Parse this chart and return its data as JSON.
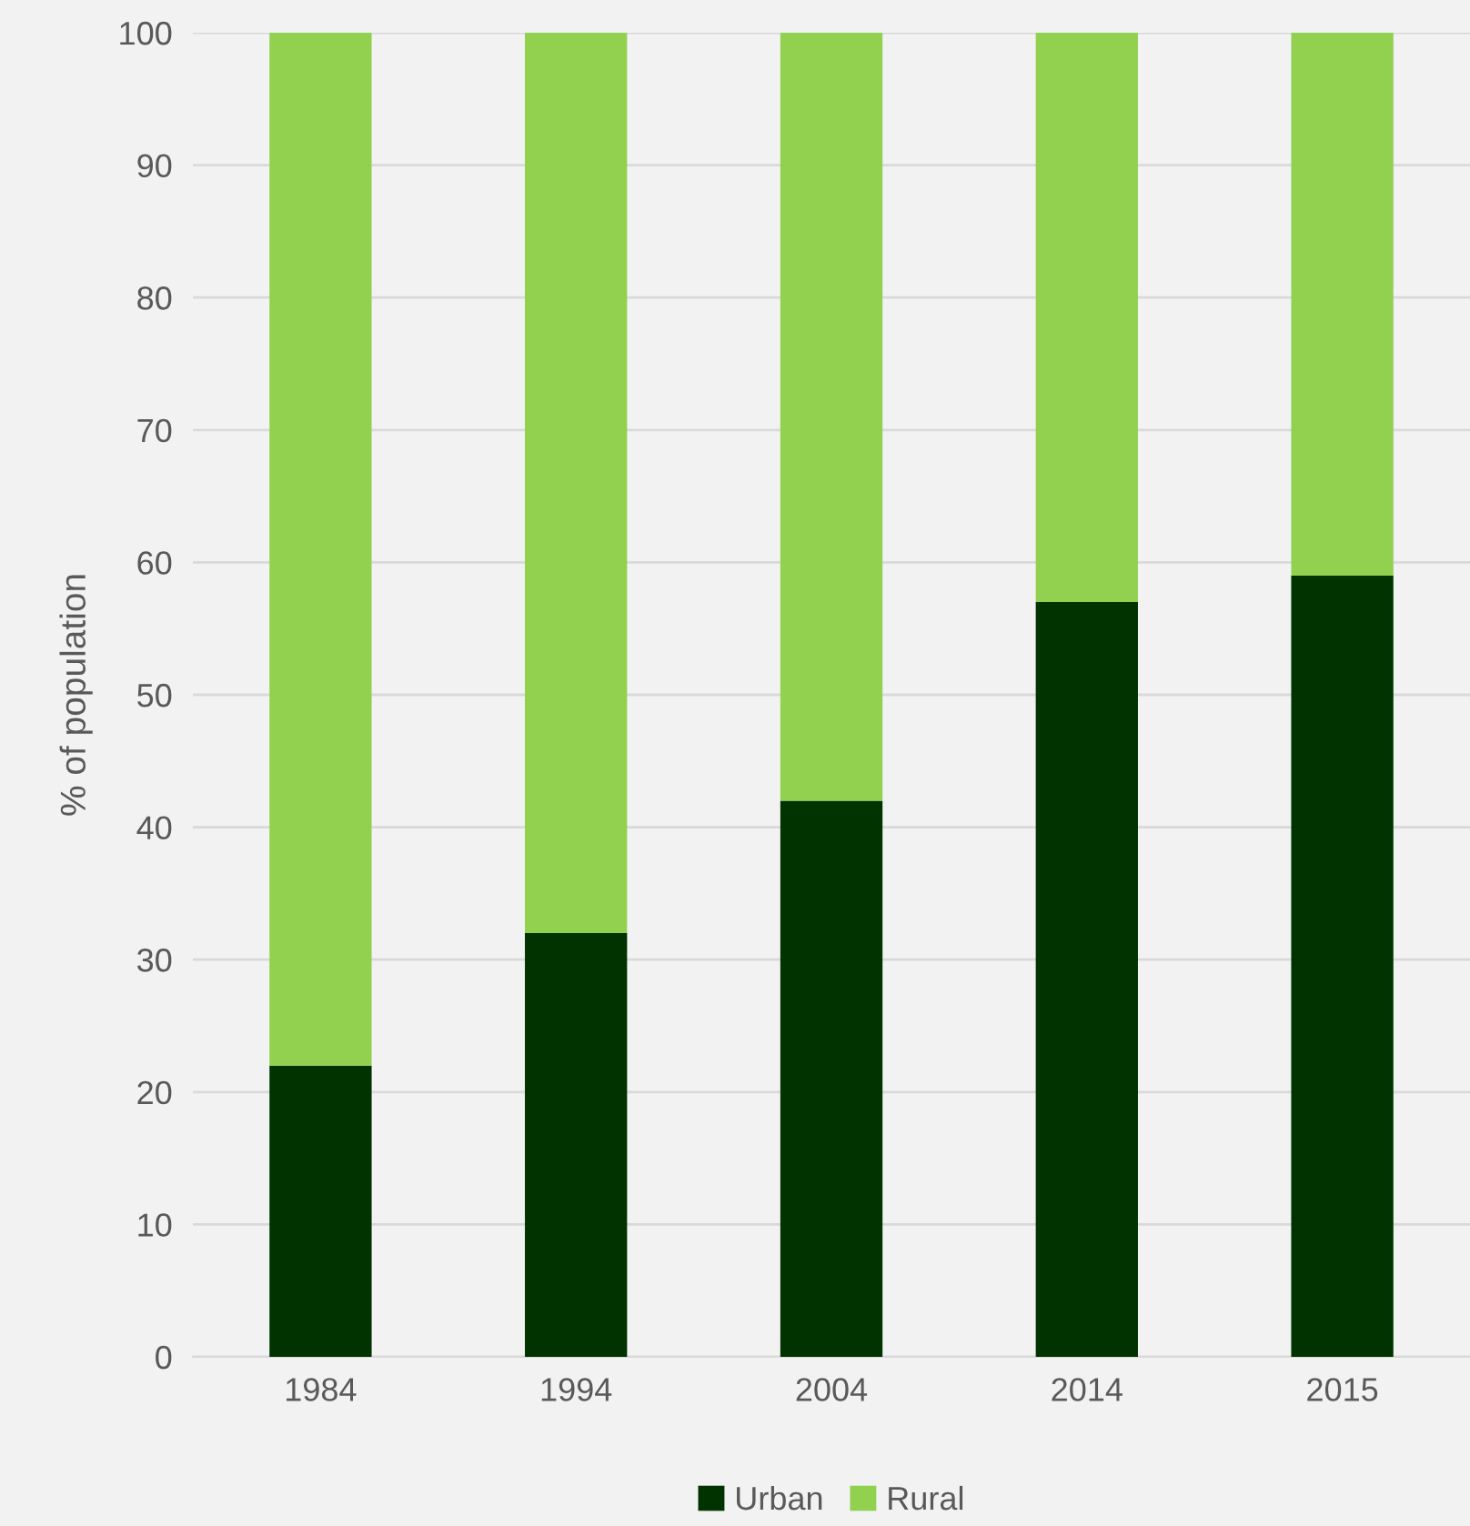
{
  "chart_data": {
    "type": "bar",
    "stacked": true,
    "ylabel": "% of population",
    "categories": [
      "1984",
      "1994",
      "2004",
      "2014",
      "2015"
    ],
    "series": [
      {
        "name": "Urban",
        "color": "#003300",
        "values": [
          22,
          32,
          42,
          57,
          59
        ]
      },
      {
        "name": "Rural",
        "color": "#92d050",
        "values": [
          78,
          68,
          58,
          43,
          41
        ]
      }
    ],
    "ylim": [
      0,
      100
    ],
    "yticks": [
      0,
      10,
      20,
      30,
      40,
      50,
      60,
      70,
      80,
      90,
      100
    ],
    "grid": "y",
    "legend": "bottom"
  }
}
